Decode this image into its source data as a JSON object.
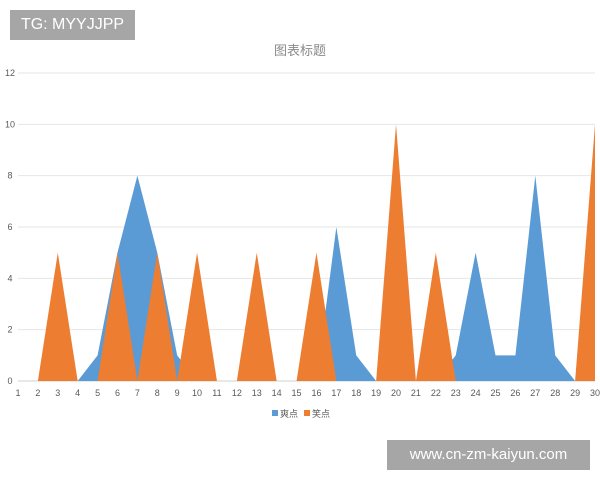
{
  "watermark_top": "TG: MYYJJPP",
  "watermark_bottom": "www.cn-zm-kaiyun.com",
  "chart_data": {
    "type": "area",
    "title": "图表标题",
    "xlabel": "",
    "ylabel": "",
    "x": [
      1,
      2,
      3,
      4,
      5,
      6,
      7,
      8,
      9,
      10,
      11,
      12,
      13,
      14,
      15,
      16,
      17,
      18,
      19,
      20,
      21,
      22,
      23,
      24,
      25,
      26,
      27,
      28,
      29,
      30
    ],
    "ylim": [
      0,
      12
    ],
    "yticks": [
      0,
      2,
      4,
      6,
      8,
      10,
      12
    ],
    "grid": true,
    "legend_position": "bottom",
    "series": [
      {
        "name": "爽点",
        "color": "#5b9bd5",
        "values": [
          0,
          0,
          0,
          0,
          1,
          5,
          8,
          5,
          1,
          0,
          0,
          0,
          0,
          0,
          0,
          0,
          6,
          1,
          0,
          0,
          0,
          0,
          1,
          5,
          1,
          1,
          8,
          1,
          0,
          0
        ]
      },
      {
        "name": "笑点",
        "color": "#ed7d31",
        "values": [
          0,
          0,
          5,
          0,
          0,
          5,
          0,
          5,
          0,
          5,
          0,
          0,
          5,
          0,
          0,
          5,
          0,
          0,
          0,
          10,
          0,
          5,
          0,
          0,
          0,
          0,
          0,
          0,
          0,
          10
        ]
      }
    ]
  }
}
